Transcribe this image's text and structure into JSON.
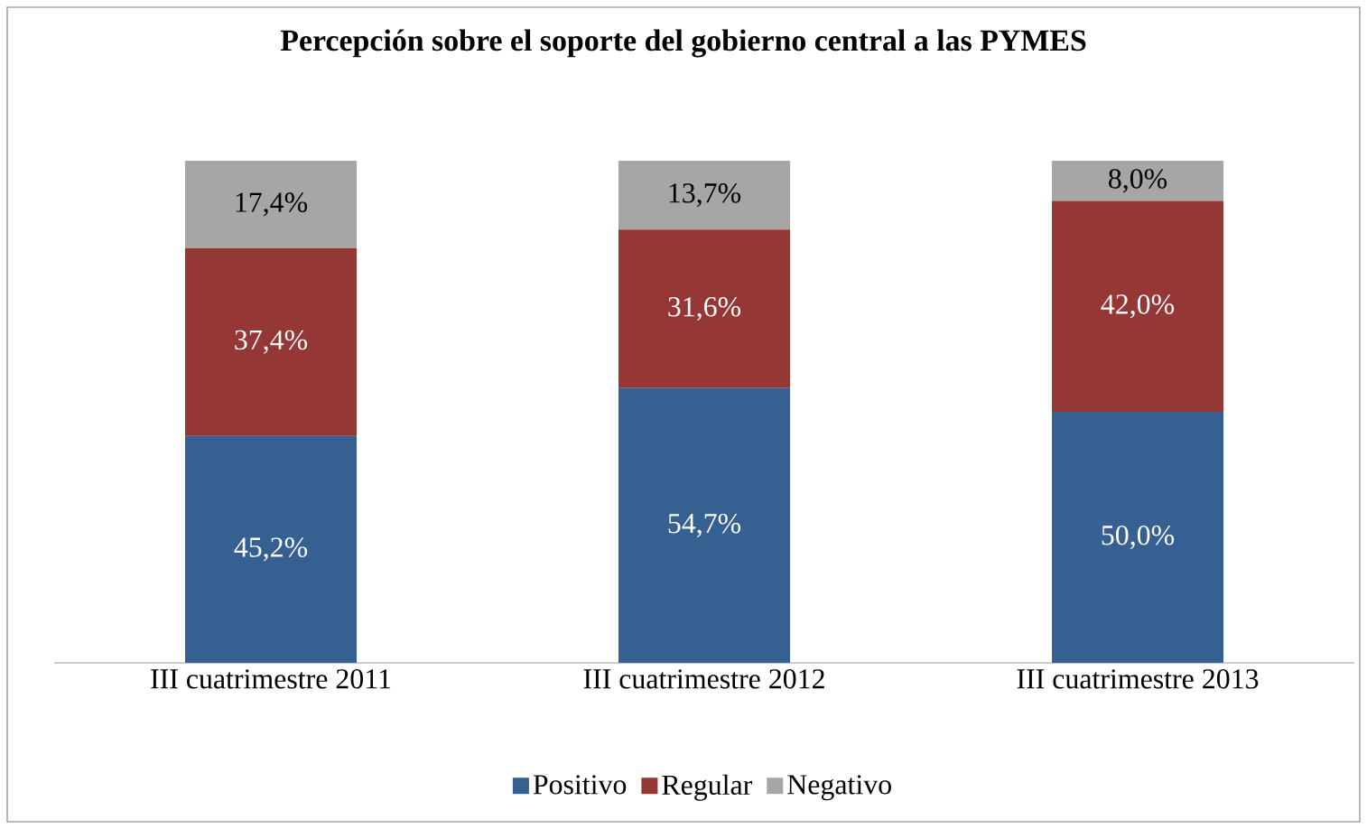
{
  "chart_data": {
    "type": "bar",
    "title": "Percepción sobre el soporte del gobierno central a las PYMES",
    "categories": [
      "III cuatrimestre 2011",
      "III cuatrimestre 2012",
      "III cuatrimestre 2013"
    ],
    "stacked": true,
    "data_labels": true,
    "legend": "bottom",
    "series": [
      {
        "name": "Positivo",
        "color": "#376092",
        "values": [
          45.2,
          54.7,
          50.0
        ],
        "value_labels": [
          "45,2%",
          "54,7%",
          "50,0%"
        ]
      },
      {
        "name": "Regular",
        "color": "#953735",
        "values": [
          37.4,
          31.6,
          42.0
        ],
        "value_labels": [
          "37,4%",
          "31,6%",
          "42,0%"
        ]
      },
      {
        "name": "Negativo",
        "color": "#a6a6a6",
        "values": [
          17.4,
          13.7,
          8.0
        ],
        "value_labels": [
          "17,4%",
          "13,7%",
          "8,0%"
        ]
      }
    ]
  }
}
